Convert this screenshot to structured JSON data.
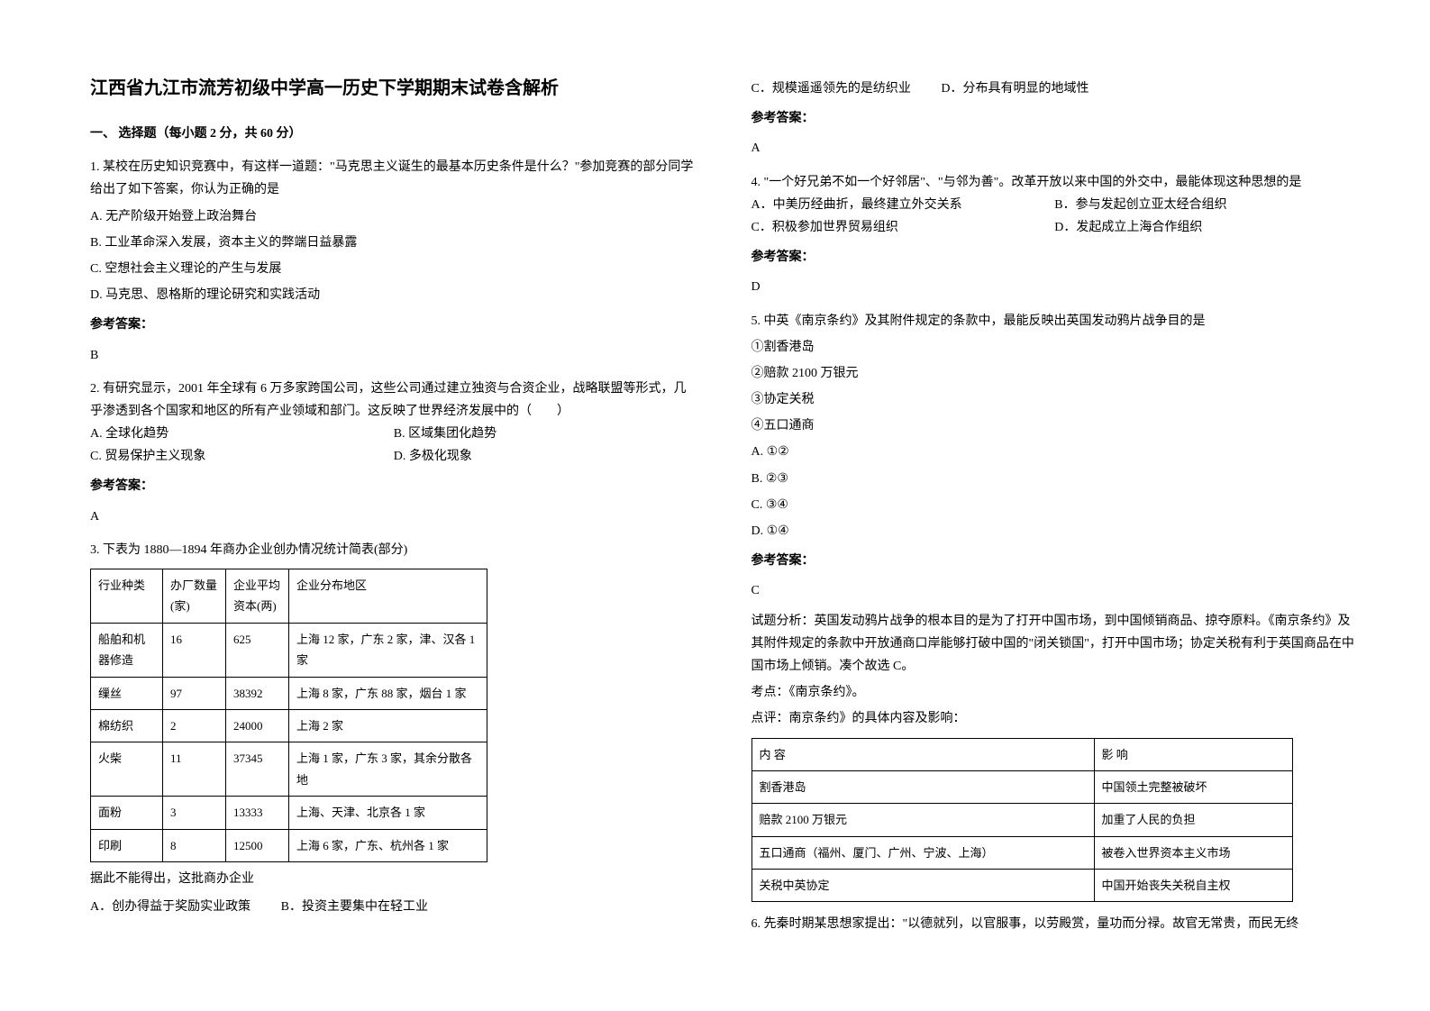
{
  "title": "江西省九江市流芳初级中学高一历史下学期期末试卷含解析",
  "section1": "一、 选择题（每小题 2 分，共 60 分）",
  "q1": {
    "text": "1. 某校在历史知识竞赛中，有这样一道题：\"马克思主义诞生的最基本历史条件是什么？\"参加竞赛的部分同学给出了如下答案，你认为正确的是",
    "a": "A. 无产阶级开始登上政治舞台",
    "b": "B. 工业革命深入发展，资本主义的弊端日益暴露",
    "c": "C. 空想社会主义理论的产生与发展",
    "d": "D. 马克思、恩格斯的理论研究和实践活动",
    "answer_label": "参考答案：",
    "answer": "B"
  },
  "q2": {
    "text": "2. 有研究显示，2001 年全球有 6 万多家跨国公司，这些公司通过建立独资与合资企业，战略联盟等形式，几乎渗透到各个国家和地区的所有产业领域和部门。这反映了世界经济发展中的（　　）",
    "a": "A. 全球化趋势",
    "b": "B. 区域集团化趋势",
    "c": "C. 贸易保护主义现象",
    "d": "D. 多极化现象",
    "answer_label": "参考答案：",
    "answer": "A"
  },
  "q3": {
    "text": "3. 下表为 1880—1894 年商办企业创办情况统计简表(部分)",
    "table": {
      "header": [
        "行业种类",
        "办厂数量(家)",
        "企业平均资本(两)",
        "企业分布地区"
      ],
      "rows": [
        [
          "船舶和机器修造",
          "16",
          "625",
          "上海 12 家，广东 2 家，津、汉各 1 家"
        ],
        [
          "缫丝",
          "97",
          "38392",
          "上海 8 家，广东 88 家，烟台 1 家"
        ],
        [
          "棉纺织",
          "2",
          "24000",
          "上海 2 家"
        ],
        [
          "火柴",
          "11",
          "37345",
          "上海 1 家，广东 3 家，其余分散各地"
        ],
        [
          "面粉",
          "3",
          "13333",
          "上海、天津、北京各 1 家"
        ],
        [
          "印刷",
          "8",
          "12500",
          "上海 6 家，广东、杭州各 1 家"
        ]
      ]
    },
    "note": "据此不能得出，这批商办企业",
    "a": "A．创办得益于奖励实业政策",
    "b": "B．投资主要集中在轻工业",
    "c": "C．规模遥遥领先的是纺织业",
    "d": "D．分布具有明显的地域性",
    "answer_label": "参考答案：",
    "answer": "A"
  },
  "q4": {
    "text": "4. \"一个好兄弟不如一个好邻居\"、\"与邻为善\"。改革开放以来中国的外交中，最能体现这种思想的是",
    "a": "A．中美历经曲折，最终建立外交关系",
    "b": "B．参与发起创立亚太经合组织",
    "c": "C．积极参加世界贸易组织",
    "d": "D．发起成立上海合作组织",
    "answer_label": "参考答案：",
    "answer": "D"
  },
  "q5": {
    "text": "5. 中英《南京条约》及其附件规定的条款中，最能反映出英国发动鸦片战争目的是",
    "i1": "①割香港岛",
    "i2": "②赔款 2100 万银元",
    "i3": "③协定关税",
    "i4": "④五口通商",
    "a": "A. ①②",
    "b": "B. ②③",
    "c": "C. ③④",
    "d": "D. ①④",
    "answer_label": "参考答案：",
    "answer": "C",
    "analysis1": "试题分析：英国发动鸦片战争的根本目的是为了打开中国市场，到中国倾销商品、掠夺原料。《南京条约》及其附件规定的条款中开放通商口岸能够打破中国的\"闭关锁国\"，打开中国市场；协定关税有利于英国商品在中国市场上倾销。凑个故选 C。",
    "analysis2": "考点：《南京条约》。",
    "analysis3": "点评：南京条约》的具体内容及影响：",
    "table": {
      "header": [
        "内 容",
        "影 响"
      ],
      "rows": [
        [
          "割香港岛",
          "中国领土完整被破坏"
        ],
        [
          "赔款 2100 万银元",
          "加重了人民的负担"
        ],
        [
          "五口通商（福州、厦门、广州、宁波、上海）",
          "被卷入世界资本主义市场"
        ],
        [
          "关税中英协定",
          "中国开始丧失关税自主权"
        ]
      ]
    }
  },
  "q6": {
    "text": "6. 先秦时期某思想家提出：\"以德就列，以官服事，以劳殿赏，量功而分禄。故官无常贵，而民无终"
  }
}
